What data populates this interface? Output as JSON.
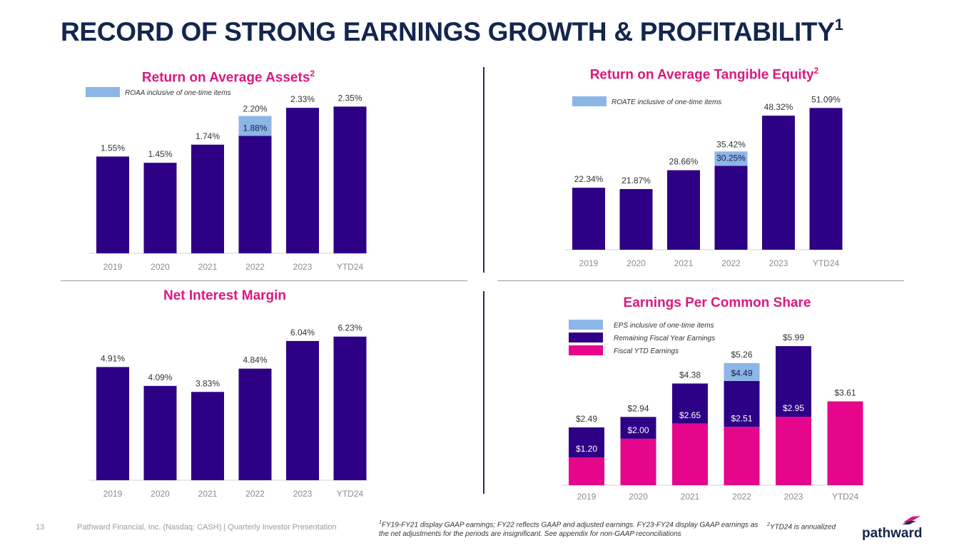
{
  "page": {
    "title": "RECORD OF STRONG EARNINGS GROWTH & PROFITABILITY",
    "title_sup": "1",
    "page_number": "13",
    "company_line": "Pathward Financial, Inc. (Nasdaq: CASH) | Quarterly Investor Presentation",
    "footnote1_sup": "1",
    "footnote1": "FY19-FY21 display GAAP earnings; FY22 reflects GAAP and adjusted earnings. FY23-FY24 display GAAP earnings as the net adjustments for the periods are insignificant. See appendix for non-GAAP reconciliations",
    "footnote2_sup": "2",
    "footnote2": "YTD24 is annualized",
    "logo_text": "pathward"
  },
  "colors": {
    "navy": "#2e0086",
    "light_blue": "#8cb6e6",
    "magenta": "#e6068c",
    "title": "#13264f",
    "chart_title": "#d9197e"
  },
  "chart_data": [
    {
      "type": "bar",
      "title": "Return on Average Assets",
      "title_sup": "2",
      "categories": [
        "2019",
        "2020",
        "2021",
        "2022",
        "2023",
        "YTD24"
      ],
      "series": [
        {
          "values": [
            1.55,
            1.45,
            1.74,
            1.88,
            2.33,
            2.35
          ],
          "labels": [
            "1.55%",
            "1.45%",
            "1.74%",
            "1.88%",
            "2.33%",
            "2.35%"
          ]
        },
        {
          "name": "ROAA inclusive of one-time items",
          "values": [
            null,
            null,
            null,
            2.2,
            null,
            null
          ],
          "labels": [
            "",
            "",
            "",
            "2.20%",
            "",
            ""
          ]
        }
      ],
      "ylim": [
        0,
        2.4
      ]
    },
    {
      "type": "bar",
      "title": "Return on Average Tangible Equity",
      "title_sup": "2",
      "categories": [
        "2019",
        "2020",
        "2021",
        "2022",
        "2023",
        "YTD24"
      ],
      "series": [
        {
          "values": [
            22.34,
            21.87,
            28.66,
            30.25,
            48.32,
            51.09
          ],
          "labels": [
            "22.34%",
            "21.87%",
            "28.66%",
            "30.25%",
            "48.32%",
            "51.09%"
          ]
        },
        {
          "name": "ROATE inclusive of one-time items",
          "values": [
            null,
            null,
            null,
            35.42,
            null,
            null
          ],
          "labels": [
            "",
            "",
            "",
            "35.42%",
            "",
            ""
          ]
        }
      ],
      "ylim": [
        0,
        54
      ]
    },
    {
      "type": "bar",
      "title": "Net Interest Margin",
      "categories": [
        "2019",
        "2020",
        "2021",
        "2022",
        "2023",
        "YTD24"
      ],
      "series": [
        {
          "values": [
            4.91,
            4.09,
            3.83,
            4.84,
            6.04,
            6.23
          ],
          "labels": [
            "4.91%",
            "4.09%",
            "3.83%",
            "4.84%",
            "6.04%",
            "6.23%"
          ]
        }
      ],
      "ylim": [
        0,
        6.5
      ]
    },
    {
      "type": "bar",
      "stacked": true,
      "title": "Earnings Per Common Share",
      "categories": [
        "2019",
        "2020",
        "2021",
        "2022",
        "2023",
        "YTD24"
      ],
      "series": [
        {
          "name": "Fiscal YTD Earnings",
          "values": [
            1.2,
            2.0,
            2.65,
            2.51,
            2.95,
            3.61
          ],
          "labels": [
            "$1.20",
            "$2.00",
            "$2.65",
            "$2.51",
            "$2.95",
            "$3.61"
          ]
        },
        {
          "name": "Remaining Fiscal Year Earnings",
          "totals": [
            2.49,
            2.94,
            4.38,
            4.49,
            5.99,
            null
          ],
          "labels": [
            "$2.49",
            "$2.94",
            "$4.38",
            "$4.49",
            "$5.99",
            ""
          ]
        },
        {
          "name": "EPS inclusive of one-time items",
          "totals": [
            null,
            null,
            null,
            5.26,
            null,
            null
          ],
          "labels": [
            "",
            "",
            "",
            "$5.26",
            "",
            ""
          ]
        }
      ],
      "ylim": [
        0,
        6.3
      ]
    }
  ]
}
